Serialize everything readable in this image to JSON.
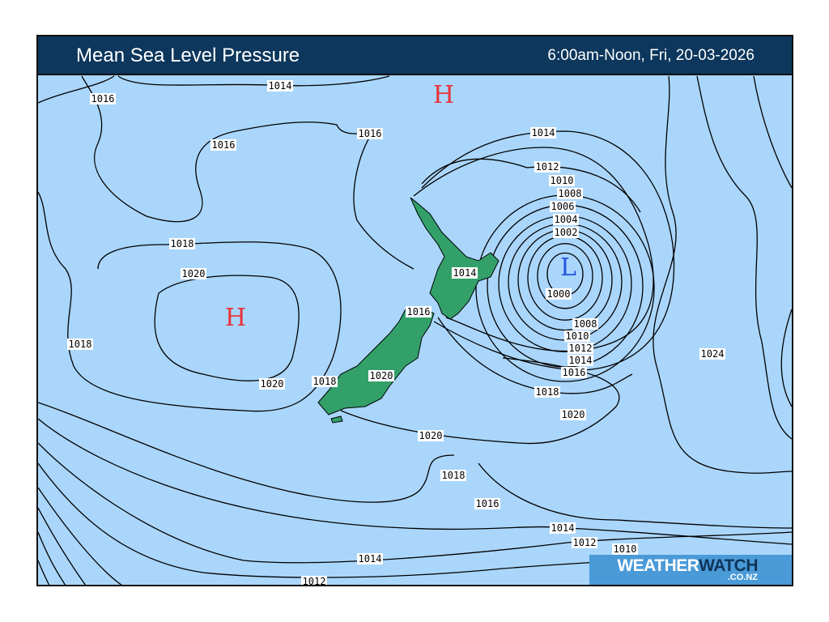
{
  "header": {
    "title": "Mean Sea Level Pressure",
    "period": "6:00am-Noon, Fri, 20-03-2026"
  },
  "colors": {
    "header": "#0d375c",
    "ocean": "#aad6fb",
    "land": "#33a06a",
    "high": "#e8333a",
    "low": "#2255dd",
    "isobar": "#000000"
  },
  "centres": [
    {
      "type": "H",
      "label": "H"
    },
    {
      "type": "H",
      "label": "H"
    },
    {
      "type": "L",
      "label": "L"
    }
  ],
  "isobar_labels": [
    "1016",
    "1014",
    "1016",
    "1016",
    "1014",
    "1012",
    "1010",
    "1008",
    "1006",
    "1004",
    "1002",
    "1000",
    "1014",
    "1018",
    "1020",
    "1018",
    "1020",
    "1018",
    "1020",
    "1016",
    "1008",
    "1010",
    "1012",
    "1014",
    "1016",
    "1018",
    "1020",
    "1024",
    "1020",
    "1018",
    "1016",
    "1014",
    "1012",
    "1014",
    "1012",
    "1010"
  ],
  "logo": {
    "brand_a": "WEATHER",
    "brand_b": "WATCH",
    "domain": ".CO.NZ"
  }
}
